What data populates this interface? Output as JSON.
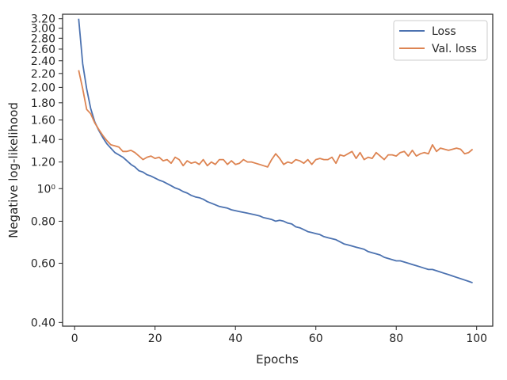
{
  "chart_data": {
    "type": "line",
    "xlabel": "Epochs",
    "ylabel": "Negative log-likelihood",
    "y_scale": "log",
    "xlim": [
      -3,
      104
    ],
    "ylim": [
      0.39,
      3.3
    ],
    "grid": false,
    "legend_position": "top-right",
    "x_ticks": [
      {
        "value": 0,
        "label": "0"
      },
      {
        "value": 20,
        "label": "20"
      },
      {
        "value": 40,
        "label": "40"
      },
      {
        "value": 60,
        "label": "60"
      },
      {
        "value": 80,
        "label": "80"
      },
      {
        "value": 100,
        "label": "100"
      }
    ],
    "y_ticks": [
      {
        "value": 0.4,
        "label": "0.40"
      },
      {
        "value": 0.6,
        "label": "0.60"
      },
      {
        "value": 0.8,
        "label": "0.80"
      },
      {
        "value": 1.0,
        "label": "10⁰"
      },
      {
        "value": 1.2,
        "label": "1.20"
      },
      {
        "value": 1.4,
        "label": "1.40"
      },
      {
        "value": 1.6,
        "label": "1.60"
      },
      {
        "value": 1.8,
        "label": "1.80"
      },
      {
        "value": 2.0,
        "label": "2.00"
      },
      {
        "value": 2.2,
        "label": "2.20"
      },
      {
        "value": 2.4,
        "label": "2.40"
      },
      {
        "value": 2.6,
        "label": "2.60"
      },
      {
        "value": 2.8,
        "label": "2.80"
      },
      {
        "value": 3.0,
        "label": "3.00"
      },
      {
        "value": 3.2,
        "label": "3.20"
      }
    ],
    "x": [
      1,
      2,
      3,
      4,
      5,
      6,
      7,
      8,
      9,
      10,
      11,
      12,
      13,
      14,
      15,
      16,
      17,
      18,
      19,
      20,
      21,
      22,
      23,
      24,
      25,
      26,
      27,
      28,
      29,
      30,
      31,
      32,
      33,
      34,
      35,
      36,
      37,
      38,
      39,
      40,
      41,
      42,
      43,
      44,
      45,
      46,
      47,
      48,
      49,
      50,
      51,
      52,
      53,
      54,
      55,
      56,
      57,
      58,
      59,
      60,
      61,
      62,
      63,
      64,
      65,
      66,
      67,
      68,
      69,
      70,
      71,
      72,
      73,
      74,
      75,
      76,
      77,
      78,
      79,
      80,
      81,
      82,
      83,
      84,
      85,
      86,
      87,
      88,
      89,
      90,
      91,
      92,
      93,
      94,
      95,
      96,
      97,
      98,
      99
    ],
    "series": [
      {
        "name": "Loss",
        "color": "#4c72b0",
        "values": [
          3.2,
          2.35,
          1.98,
          1.73,
          1.58,
          1.49,
          1.42,
          1.36,
          1.32,
          1.28,
          1.26,
          1.24,
          1.21,
          1.18,
          1.16,
          1.13,
          1.12,
          1.1,
          1.09,
          1.075,
          1.06,
          1.05,
          1.035,
          1.02,
          1.005,
          0.995,
          0.98,
          0.97,
          0.955,
          0.945,
          0.94,
          0.93,
          0.915,
          0.905,
          0.895,
          0.885,
          0.88,
          0.875,
          0.865,
          0.86,
          0.855,
          0.85,
          0.845,
          0.84,
          0.835,
          0.83,
          0.82,
          0.815,
          0.81,
          0.8,
          0.805,
          0.8,
          0.79,
          0.785,
          0.77,
          0.765,
          0.755,
          0.745,
          0.74,
          0.735,
          0.73,
          0.72,
          0.715,
          0.71,
          0.705,
          0.695,
          0.685,
          0.68,
          0.675,
          0.67,
          0.665,
          0.66,
          0.65,
          0.645,
          0.64,
          0.635,
          0.625,
          0.62,
          0.615,
          0.61,
          0.61,
          0.605,
          0.6,
          0.595,
          0.59,
          0.585,
          0.58,
          0.575,
          0.575,
          0.57,
          0.565,
          0.56,
          0.555,
          0.55,
          0.545,
          0.54,
          0.535,
          0.53,
          0.525
        ]
      },
      {
        "name": "Val. loss",
        "color": "#dd8452",
        "values": [
          2.25,
          1.98,
          1.72,
          1.67,
          1.57,
          1.5,
          1.44,
          1.39,
          1.35,
          1.34,
          1.33,
          1.29,
          1.29,
          1.3,
          1.28,
          1.25,
          1.22,
          1.24,
          1.25,
          1.23,
          1.24,
          1.21,
          1.22,
          1.19,
          1.24,
          1.22,
          1.17,
          1.21,
          1.19,
          1.2,
          1.18,
          1.22,
          1.17,
          1.2,
          1.18,
          1.22,
          1.22,
          1.18,
          1.21,
          1.18,
          1.19,
          1.22,
          1.2,
          1.2,
          1.19,
          1.18,
          1.17,
          1.16,
          1.22,
          1.27,
          1.23,
          1.18,
          1.2,
          1.19,
          1.22,
          1.21,
          1.19,
          1.22,
          1.18,
          1.22,
          1.23,
          1.22,
          1.22,
          1.24,
          1.19,
          1.26,
          1.25,
          1.27,
          1.29,
          1.23,
          1.28,
          1.22,
          1.24,
          1.23,
          1.28,
          1.25,
          1.22,
          1.26,
          1.26,
          1.25,
          1.28,
          1.29,
          1.25,
          1.3,
          1.25,
          1.27,
          1.28,
          1.27,
          1.35,
          1.29,
          1.32,
          1.31,
          1.3,
          1.31,
          1.32,
          1.31,
          1.27,
          1.28,
          1.31
        ]
      }
    ]
  }
}
